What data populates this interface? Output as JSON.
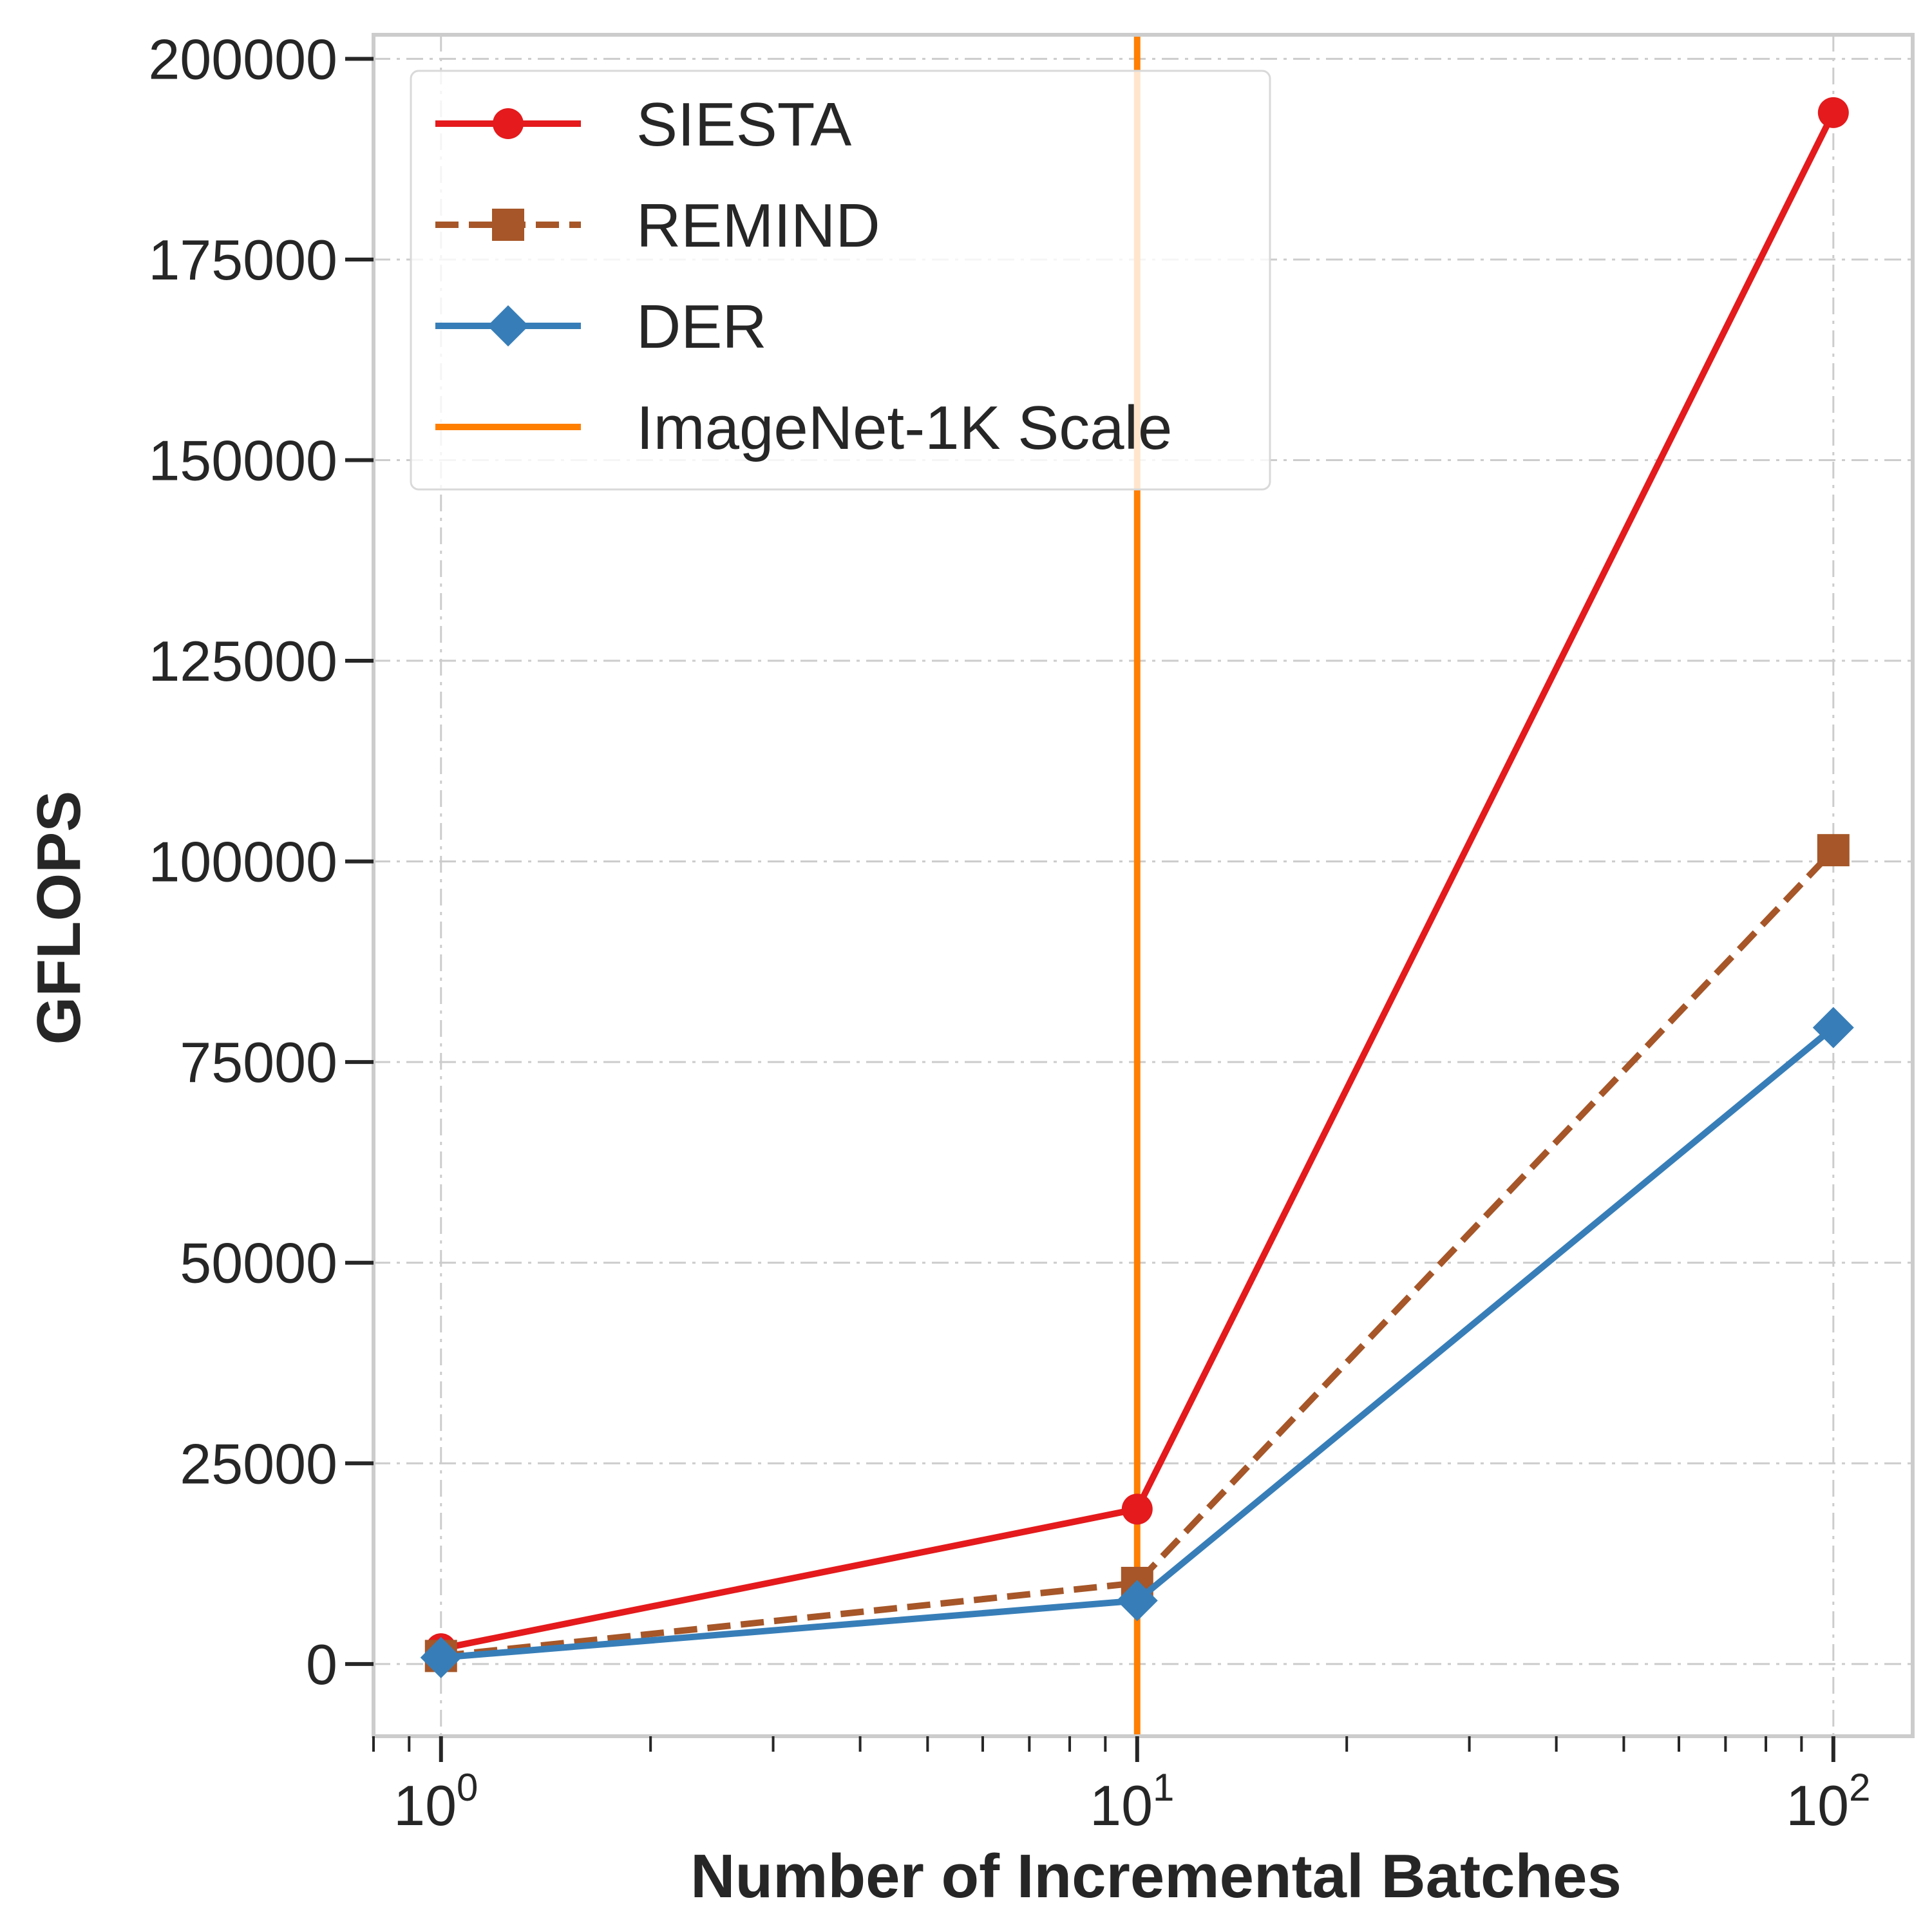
{
  "chart_data": {
    "type": "line",
    "title": "",
    "xlabel": "Number of Incremental Batches",
    "ylabel": "GFLOPS",
    "xscale": "log",
    "xlim": [
      0.8,
      130
    ],
    "ylim": [
      -9000,
      203000
    ],
    "x_ticks": [
      {
        "value": 1,
        "base": "10",
        "exp": "0"
      },
      {
        "value": 10,
        "base": "10",
        "exp": "1"
      },
      {
        "value": 100,
        "base": "10",
        "exp": "2"
      }
    ],
    "y_ticks": [
      0,
      25000,
      50000,
      75000,
      100000,
      125000,
      150000,
      175000,
      200000
    ],
    "grid": true,
    "legend_position": "top-left",
    "series": [
      {
        "name": "SIESTA",
        "color": "#e41a1c",
        "marker": "circle",
        "linestyle": "solid",
        "x": [
          1,
          10,
          100
        ],
        "y": [
          1900,
          19300,
          193300
        ]
      },
      {
        "name": "REMIND",
        "color": "#a65628",
        "marker": "square",
        "linestyle": "dashed",
        "x": [
          1,
          10,
          100
        ],
        "y": [
          1000,
          10100,
          101400
        ]
      },
      {
        "name": "DER",
        "color": "#377eb8",
        "marker": "diamond",
        "linestyle": "solid",
        "x": [
          1,
          10,
          100
        ],
        "y": [
          800,
          7900,
          79300
        ]
      }
    ],
    "reference_lines": [
      {
        "name": "ImageNet-1K Scale",
        "orientation": "vertical",
        "x": 10,
        "color": "#ff7f00"
      }
    ]
  }
}
